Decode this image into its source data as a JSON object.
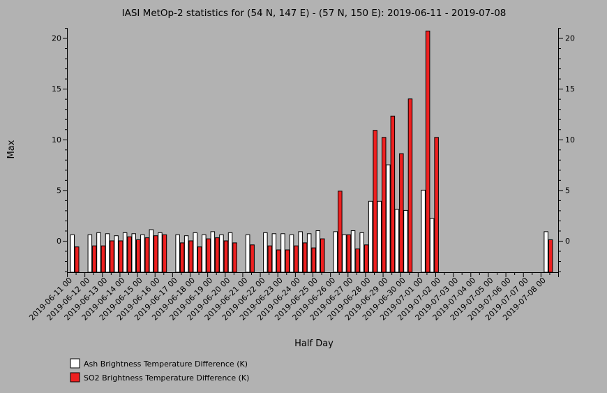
{
  "chart_data": {
    "type": "bar",
    "title": "IASI MetOp-2 statistics for (54 N, 147 E) - (57 N, 150 E): 2019-06-11 - 2019-07-08",
    "xlabel": "Half Day",
    "ylabel": "Max",
    "ylim": [
      -3.1,
      21
    ],
    "yticks": [
      0,
      5,
      10,
      15,
      20
    ],
    "grid": false,
    "legend_position": "bottom-left",
    "categories": [
      "2019-06-11 00",
      "2019-06-11 12",
      "2019-06-12 00",
      "2019-06-12 12",
      "2019-06-13 00",
      "2019-06-13 12",
      "2019-06-14 00",
      "2019-06-14 12",
      "2019-06-15 00",
      "2019-06-15 12",
      "2019-06-16 00",
      "2019-06-16 12",
      "2019-06-17 00",
      "2019-06-17 12",
      "2019-06-18 00",
      "2019-06-18 12",
      "2019-06-19 00",
      "2019-06-19 12",
      "2019-06-20 00",
      "2019-06-20 12",
      "2019-06-21 00",
      "2019-06-21 12",
      "2019-06-22 00",
      "2019-06-22 12",
      "2019-06-23 00",
      "2019-06-23 12",
      "2019-06-24 00",
      "2019-06-24 12",
      "2019-06-25 00",
      "2019-06-25 12",
      "2019-06-26 00",
      "2019-06-26 12",
      "2019-06-27 00",
      "2019-06-27 12",
      "2019-06-28 00",
      "2019-06-28 12",
      "2019-06-29 00",
      "2019-06-29 12",
      "2019-06-30 00",
      "2019-06-30 12",
      "2019-07-01 00",
      "2019-07-01 12",
      "2019-07-02 00",
      "2019-07-02 12",
      "2019-07-03 00",
      "2019-07-03 12",
      "2019-07-04 00",
      "2019-07-04 12",
      "2019-07-05 00",
      "2019-07-05 12",
      "2019-07-06 00",
      "2019-07-06 12",
      "2019-07-07 00",
      "2019-07-07 12",
      "2019-07-08 00",
      "2019-07-08 12"
    ],
    "tick_labels": [
      "2019-06-11 00",
      "2019-06-12 00",
      "2019-06-13 00",
      "2019-06-14 00",
      "2019-06-15 00",
      "2019-06-16 00",
      "2019-06-17 00",
      "2019-06-18 00",
      "2019-06-19 00",
      "2019-06-20 00",
      "2019-06-21 00",
      "2019-06-22 00",
      "2019-06-23 00",
      "2019-06-24 00",
      "2019-06-25 00",
      "2019-06-26 00",
      "2019-06-27 00",
      "2019-06-28 00",
      "2019-06-29 00",
      "2019-06-30 00",
      "2019-07-01 00",
      "2019-07-02 00",
      "2019-07-03 00",
      "2019-07-04 00",
      "2019-07-05 00",
      "2019-07-06 00",
      "2019-07-07 00",
      "2019-07-08 00"
    ],
    "series": [
      {
        "name": "Ash Brightness Temperature Difference (K)",
        "color": "#ffffff",
        "values": [
          0.6,
          null,
          0.6,
          0.8,
          0.7,
          0.5,
          0.8,
          0.7,
          0.6,
          1.1,
          0.8,
          null,
          0.6,
          0.5,
          0.8,
          0.6,
          0.9,
          0.6,
          0.8,
          null,
          0.6,
          null,
          0.8,
          0.7,
          0.7,
          0.6,
          0.9,
          0.7,
          1.0,
          null,
          0.9,
          0.6,
          1.0,
          0.8,
          3.9,
          3.9,
          7.5,
          3.1,
          3.0,
          null,
          5.0,
          2.2,
          null,
          null,
          null,
          null,
          null,
          null,
          null,
          null,
          null,
          null,
          null,
          null,
          0.9,
          null
        ]
      },
      {
        "name": "SO2 Brightness Temperature Difference (K)",
        "color": "#ee2020",
        "values": [
          -0.6,
          null,
          -0.5,
          -0.5,
          0.0,
          0.0,
          0.4,
          0.1,
          0.3,
          0.5,
          0.6,
          null,
          -0.2,
          0.0,
          -0.6,
          0.2,
          0.3,
          0.0,
          -0.2,
          null,
          -0.4,
          null,
          -0.5,
          -0.9,
          -0.9,
          -0.5,
          -0.2,
          -0.7,
          0.2,
          null,
          4.9,
          0.6,
          -0.8,
          -0.4,
          10.9,
          10.2,
          12.3,
          8.6,
          14.0,
          null,
          20.7,
          10.2,
          null,
          null,
          null,
          null,
          null,
          null,
          null,
          null,
          null,
          null,
          null,
          null,
          0.1,
          null
        ]
      }
    ]
  }
}
